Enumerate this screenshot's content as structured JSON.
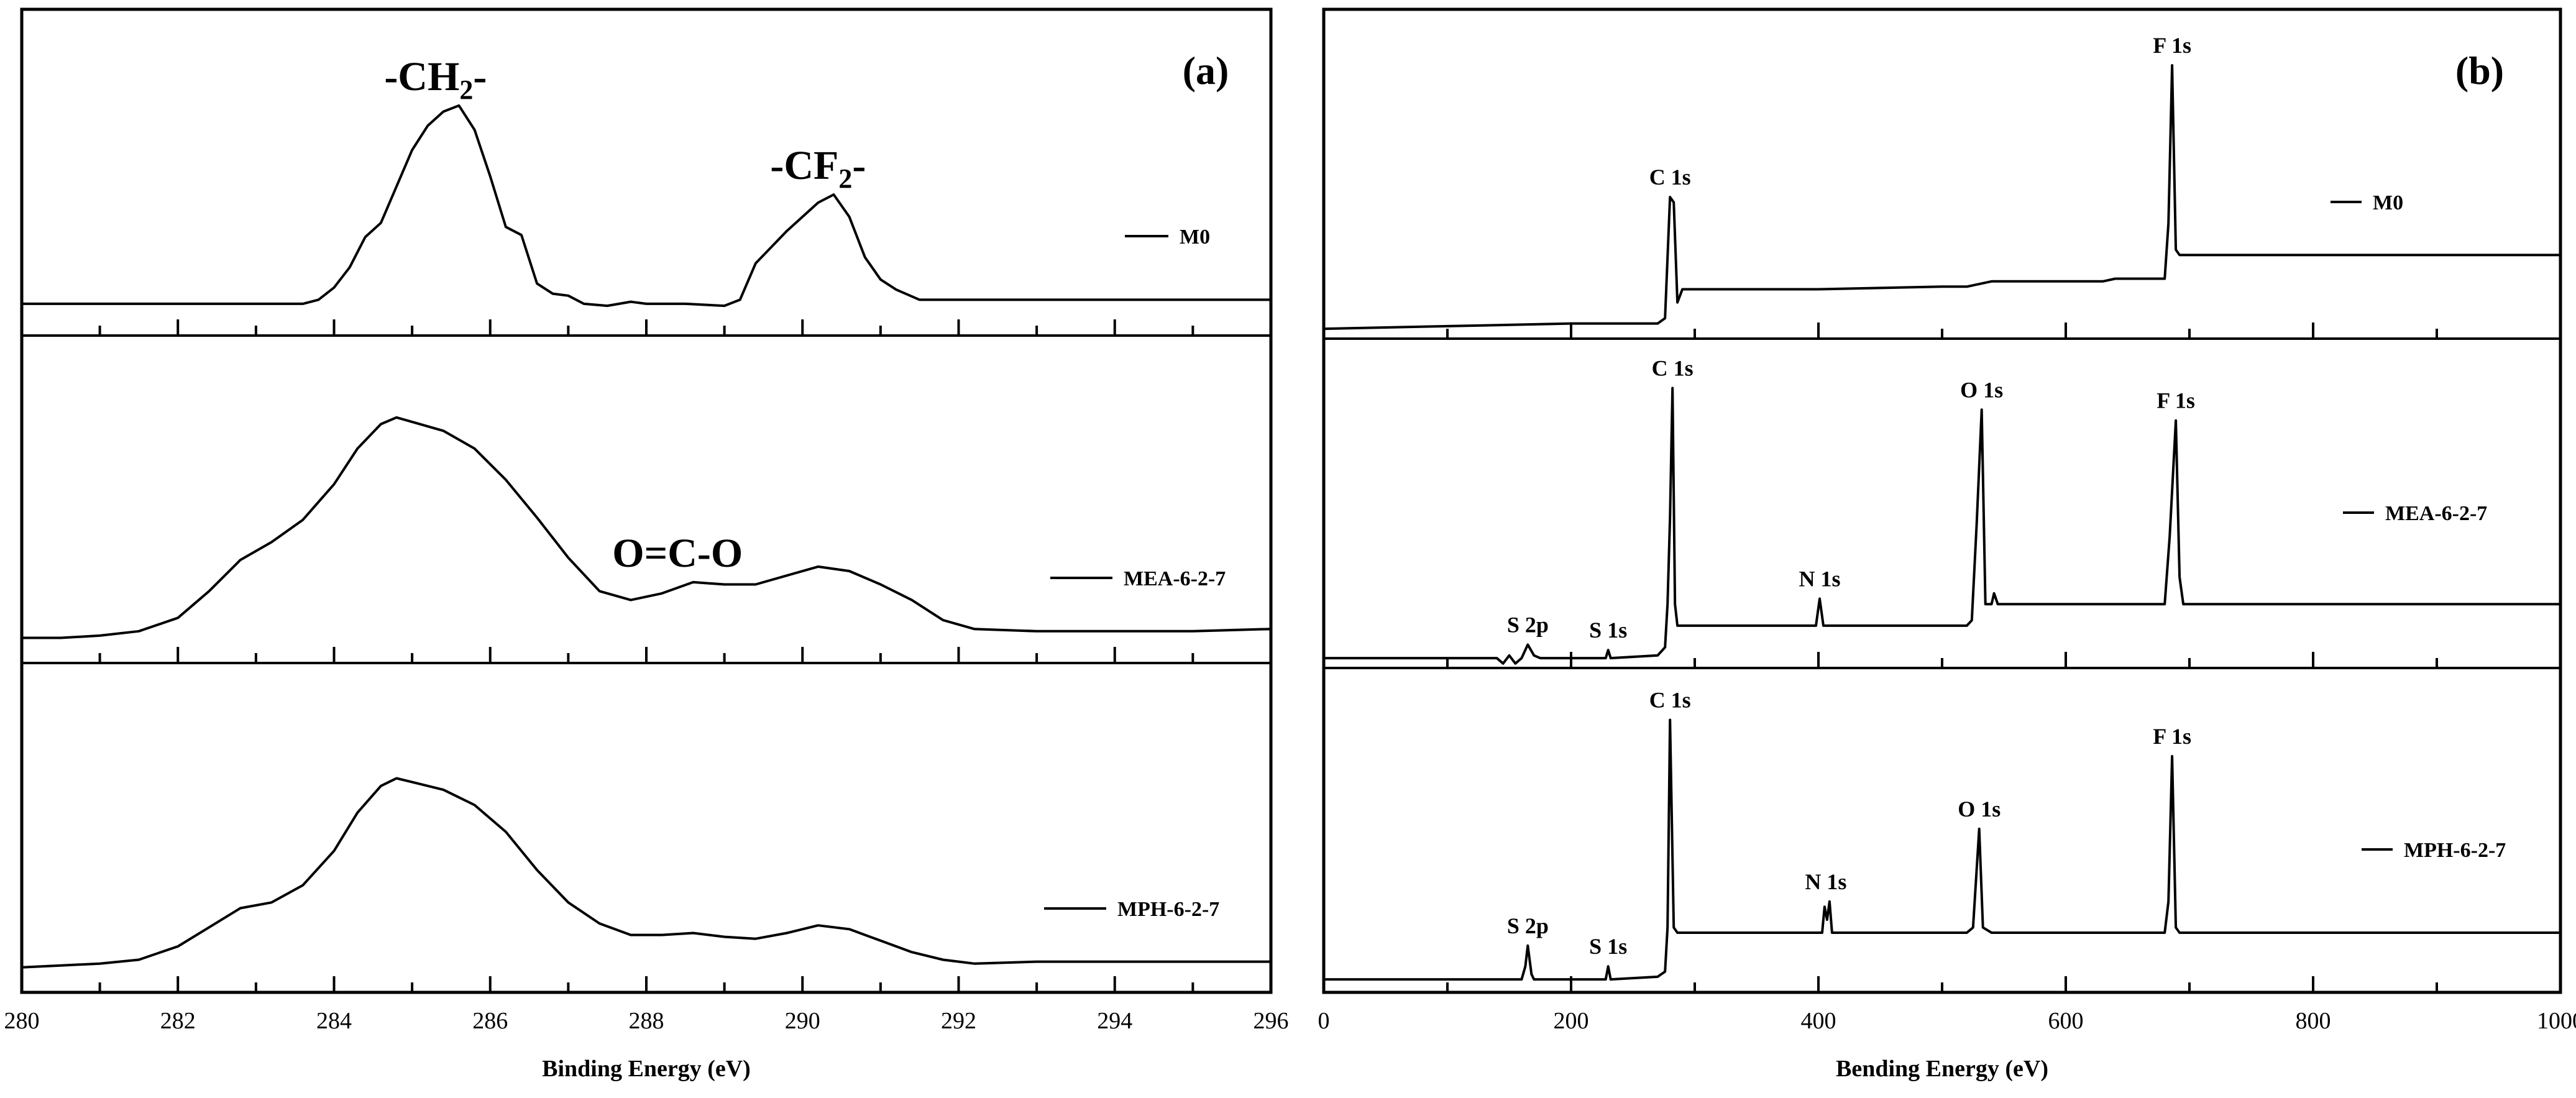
{
  "chart_data": [
    {
      "type": "line",
      "panel_label": "(a)",
      "xlabel": "Binding Energy (eV)",
      "xlim": [
        280,
        296
      ],
      "x_ticks": [
        280,
        282,
        284,
        286,
        288,
        290,
        292,
        294,
        296
      ],
      "x_minor_step": 1,
      "stacked": true,
      "series": [
        {
          "name": "M0",
          "annotations": [
            {
              "text": "-CH",
              "sub": "2",
              "tail": "-",
              "x": 285.3
            },
            {
              "text": "-CF",
              "sub": "2",
              "tail": "-",
              "x": 290.2
            }
          ],
          "points": [
            [
              280,
              0.02
            ],
            [
              281,
              0.02
            ],
            [
              282,
              0.02
            ],
            [
              283,
              0.02
            ],
            [
              283.6,
              0.02
            ],
            [
              283.8,
              0.04
            ],
            [
              284.0,
              0.1
            ],
            [
              284.2,
              0.2
            ],
            [
              284.4,
              0.35
            ],
            [
              284.6,
              0.42
            ],
            [
              284.8,
              0.6
            ],
            [
              285.0,
              0.78
            ],
            [
              285.2,
              0.9
            ],
            [
              285.4,
              0.97
            ],
            [
              285.6,
              1.0
            ],
            [
              285.8,
              0.88
            ],
            [
              286.0,
              0.65
            ],
            [
              286.2,
              0.4
            ],
            [
              286.4,
              0.36
            ],
            [
              286.6,
              0.12
            ],
            [
              286.8,
              0.07
            ],
            [
              287.0,
              0.06
            ],
            [
              287.2,
              0.02
            ],
            [
              287.5,
              0.01
            ],
            [
              287.8,
              0.03
            ],
            [
              288.0,
              0.02
            ],
            [
              288.5,
              0.02
            ],
            [
              289.0,
              0.01
            ],
            [
              289.2,
              0.04
            ],
            [
              289.4,
              0.22
            ],
            [
              289.6,
              0.3
            ],
            [
              289.8,
              0.38
            ],
            [
              290.0,
              0.45
            ],
            [
              290.2,
              0.52
            ],
            [
              290.4,
              0.56
            ],
            [
              290.6,
              0.45
            ],
            [
              290.8,
              0.25
            ],
            [
              291.0,
              0.14
            ],
            [
              291.2,
              0.09
            ],
            [
              291.5,
              0.04
            ],
            [
              292,
              0.04
            ],
            [
              293,
              0.04
            ],
            [
              294,
              0.04
            ],
            [
              295,
              0.04
            ],
            [
              296,
              0.04
            ]
          ]
        },
        {
          "name": "MEA-6-2-7",
          "annotations": [
            {
              "text": "O=C-O",
              "x": 288.4
            }
          ],
          "points": [
            [
              280,
              0.01
            ],
            [
              280.5,
              0.01
            ],
            [
              281,
              0.02
            ],
            [
              281.5,
              0.04
            ],
            [
              282,
              0.1
            ],
            [
              282.4,
              0.22
            ],
            [
              282.8,
              0.36
            ],
            [
              283.2,
              0.44
            ],
            [
              283.6,
              0.54
            ],
            [
              284.0,
              0.7
            ],
            [
              284.3,
              0.86
            ],
            [
              284.6,
              0.97
            ],
            [
              284.8,
              1.0
            ],
            [
              285.0,
              0.98
            ],
            [
              285.4,
              0.94
            ],
            [
              285.8,
              0.86
            ],
            [
              286.2,
              0.72
            ],
            [
              286.6,
              0.55
            ],
            [
              287.0,
              0.37
            ],
            [
              287.4,
              0.22
            ],
            [
              287.8,
              0.18
            ],
            [
              288.2,
              0.21
            ],
            [
              288.6,
              0.26
            ],
            [
              289.0,
              0.25
            ],
            [
              289.4,
              0.25
            ],
            [
              289.8,
              0.29
            ],
            [
              290.2,
              0.33
            ],
            [
              290.6,
              0.31
            ],
            [
              291.0,
              0.25
            ],
            [
              291.4,
              0.18
            ],
            [
              291.8,
              0.09
            ],
            [
              292.2,
              0.05
            ],
            [
              293,
              0.04
            ],
            [
              294,
              0.04
            ],
            [
              295,
              0.04
            ],
            [
              296,
              0.05
            ]
          ]
        },
        {
          "name": "MPH-6-2-7",
          "points": [
            [
              280,
              0.01
            ],
            [
              280.5,
              0.02
            ],
            [
              281,
              0.03
            ],
            [
              281.5,
              0.05
            ],
            [
              282,
              0.12
            ],
            [
              282.4,
              0.22
            ],
            [
              282.8,
              0.32
            ],
            [
              283.2,
              0.35
            ],
            [
              283.6,
              0.44
            ],
            [
              284.0,
              0.62
            ],
            [
              284.3,
              0.82
            ],
            [
              284.6,
              0.96
            ],
            [
              284.8,
              1.0
            ],
            [
              285.0,
              0.98
            ],
            [
              285.4,
              0.94
            ],
            [
              285.8,
              0.86
            ],
            [
              286.2,
              0.72
            ],
            [
              286.6,
              0.52
            ],
            [
              287.0,
              0.35
            ],
            [
              287.4,
              0.24
            ],
            [
              287.8,
              0.18
            ],
            [
              288.2,
              0.18
            ],
            [
              288.6,
              0.19
            ],
            [
              289.0,
              0.17
            ],
            [
              289.4,
              0.16
            ],
            [
              289.8,
              0.19
            ],
            [
              290.2,
              0.23
            ],
            [
              290.6,
              0.21
            ],
            [
              291.0,
              0.15
            ],
            [
              291.4,
              0.09
            ],
            [
              291.8,
              0.05
            ],
            [
              292.2,
              0.03
            ],
            [
              293,
              0.04
            ],
            [
              294,
              0.04
            ],
            [
              295,
              0.04
            ],
            [
              296,
              0.04
            ]
          ]
        }
      ]
    },
    {
      "type": "line",
      "panel_label": "(b)",
      "xlabel": "Bending Energy (eV)",
      "xlim": [
        0,
        1000
      ],
      "x_ticks": [
        0,
        200,
        400,
        600,
        800,
        1000
      ],
      "x_minor_step": 100,
      "stacked": true,
      "series": [
        {
          "name": "M0",
          "peak_labels": [
            {
              "text": "C 1s",
              "x": 280
            },
            {
              "text": "F 1s",
              "x": 686
            }
          ],
          "points": [
            [
              0,
              0.0
            ],
            [
              100,
              0.01
            ],
            [
              200,
              0.02
            ],
            [
              270,
              0.02
            ],
            [
              276,
              0.04
            ],
            [
              280,
              0.5
            ],
            [
              283,
              0.48
            ],
            [
              286,
              0.1
            ],
            [
              290,
              0.15
            ],
            [
              400,
              0.15
            ],
            [
              500,
              0.16
            ],
            [
              520,
              0.16
            ],
            [
              540,
              0.18
            ],
            [
              600,
              0.18
            ],
            [
              630,
              0.18
            ],
            [
              640,
              0.19
            ],
            [
              680,
              0.19
            ],
            [
              683,
              0.4
            ],
            [
              686,
              1.0
            ],
            [
              689,
              0.3
            ],
            [
              692,
              0.28
            ],
            [
              800,
              0.28
            ],
            [
              1000,
              0.28
            ]
          ]
        },
        {
          "name": "MEA-6-2-7",
          "peak_labels": [
            {
              "text": "S 2p",
              "x": 165
            },
            {
              "text": "S 1s",
              "x": 230
            },
            {
              "text": "C 1s",
              "x": 282
            },
            {
              "text": "N 1s",
              "x": 401
            },
            {
              "text": "O 1s",
              "x": 532
            },
            {
              "text": "F 1s",
              "x": 689
            }
          ],
          "points": [
            [
              0,
              0.0
            ],
            [
              140,
              0.0
            ],
            [
              145,
              -0.02
            ],
            [
              150,
              0.01
            ],
            [
              155,
              -0.02
            ],
            [
              160,
              0.0
            ],
            [
              165,
              0.05
            ],
            [
              170,
              0.01
            ],
            [
              175,
              0.0
            ],
            [
              228,
              0.0
            ],
            [
              230,
              0.03
            ],
            [
              232,
              0.0
            ],
            [
              270,
              0.01
            ],
            [
              276,
              0.04
            ],
            [
              278,
              0.2
            ],
            [
              280,
              0.52
            ],
            [
              282,
              1.0
            ],
            [
              284,
              0.2
            ],
            [
              286,
              0.12
            ],
            [
              290,
              0.12
            ],
            [
              398,
              0.12
            ],
            [
              401,
              0.22
            ],
            [
              404,
              0.12
            ],
            [
              520,
              0.12
            ],
            [
              524,
              0.14
            ],
            [
              528,
              0.5
            ],
            [
              532,
              0.92
            ],
            [
              535,
              0.2
            ],
            [
              540,
              0.2
            ],
            [
              542,
              0.24
            ],
            [
              545,
              0.2
            ],
            [
              600,
              0.2
            ],
            [
              680,
              0.2
            ],
            [
              684,
              0.45
            ],
            [
              689,
              0.88
            ],
            [
              692,
              0.3
            ],
            [
              695,
              0.2
            ],
            [
              1000,
              0.2
            ]
          ]
        },
        {
          "name": "MPH-6-2-7",
          "peak_labels": [
            {
              "text": "S 2p",
              "x": 165
            },
            {
              "text": "S 1s",
              "x": 230
            },
            {
              "text": "C 1s",
              "x": 280
            },
            {
              "text": "N 1s",
              "x": 406
            },
            {
              "text": "O 1s",
              "x": 530
            },
            {
              "text": "F 1s",
              "x": 686
            }
          ],
          "points": [
            [
              0,
              0.0
            ],
            [
              160,
              0.0
            ],
            [
              163,
              0.05
            ],
            [
              165,
              0.13
            ],
            [
              168,
              0.02
            ],
            [
              170,
              0.0
            ],
            [
              228,
              0.0
            ],
            [
              230,
              0.05
            ],
            [
              232,
              0.0
            ],
            [
              270,
              0.01
            ],
            [
              276,
              0.03
            ],
            [
              278,
              0.2
            ],
            [
              280,
              1.0
            ],
            [
              283,
              0.2
            ],
            [
              286,
              0.18
            ],
            [
              400,
              0.18
            ],
            [
              403,
              0.18
            ],
            [
              405,
              0.28
            ],
            [
              407,
              0.23
            ],
            [
              409,
              0.3
            ],
            [
              411,
              0.18
            ],
            [
              520,
              0.18
            ],
            [
              525,
              0.2
            ],
            [
              530,
              0.58
            ],
            [
              533,
              0.2
            ],
            [
              540,
              0.18
            ],
            [
              680,
              0.18
            ],
            [
              683,
              0.3
            ],
            [
              686,
              0.86
            ],
            [
              689,
              0.2
            ],
            [
              692,
              0.18
            ],
            [
              1000,
              0.18
            ]
          ]
        }
      ]
    }
  ]
}
